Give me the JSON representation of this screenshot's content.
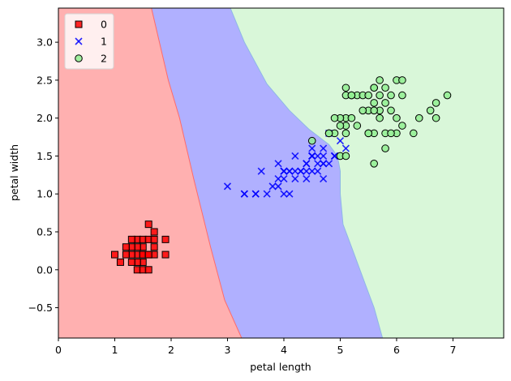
{
  "chart_data": {
    "type": "scatter",
    "title": "",
    "xlabel": "petal length",
    "ylabel": "petal width",
    "xlim": [
      0,
      7.9
    ],
    "ylim": [
      -0.9,
      3.45
    ],
    "x_ticks": [
      0,
      1,
      2,
      3,
      4,
      5,
      6,
      7
    ],
    "y_ticks": [
      -0.5,
      0.0,
      0.5,
      1.0,
      1.5,
      2.0,
      2.5,
      3.0
    ],
    "x_tick_labels": [
      "0",
      "1",
      "2",
      "3",
      "4",
      "5",
      "6",
      "7"
    ],
    "y_tick_labels": [
      "−0.5",
      "0.0",
      "0.5",
      "1.0",
      "1.5",
      "2.0",
      "2.5",
      "3.0"
    ],
    "grid": false,
    "legend_position": "top-left",
    "regions": [
      {
        "class": "0",
        "color": "#ffb0b0",
        "boundary_color": "#ff6b6b"
      },
      {
        "class": "1",
        "color": "#b0b0ff",
        "boundary_color": "#7f7fe0"
      },
      {
        "class": "2",
        "color": "#d9f7d9",
        "boundary_color": "#8fb8e6"
      }
    ],
    "boundaries": {
      "class0_class1": [
        [
          1.65,
          3.45
        ],
        [
          1.95,
          2.5
        ],
        [
          2.15,
          2.0
        ],
        [
          2.4,
          1.2
        ],
        [
          2.7,
          0.3
        ],
        [
          2.95,
          -0.4
        ],
        [
          3.25,
          -0.9
        ]
      ],
      "class1_class2": [
        [
          3.05,
          3.45
        ],
        [
          3.3,
          3.0
        ],
        [
          3.7,
          2.45
        ],
        [
          4.1,
          2.1
        ],
        [
          4.45,
          1.85
        ],
        [
          4.8,
          1.65
        ],
        [
          4.95,
          1.5
        ],
        [
          5.0,
          1.3
        ],
        [
          5.0,
          1.0
        ],
        [
          5.05,
          0.6
        ],
        [
          5.2,
          0.3
        ],
        [
          5.45,
          -0.2
        ],
        [
          5.6,
          -0.5
        ],
        [
          5.75,
          -0.9
        ]
      ]
    },
    "series": [
      {
        "name": "0",
        "marker": "square",
        "color": "#ff0000",
        "edge": "#000000",
        "points": [
          [
            1.4,
            0.2
          ],
          [
            1.3,
            0.2
          ],
          [
            1.5,
            0.2
          ],
          [
            1.4,
            0.4
          ],
          [
            1.5,
            0.1
          ],
          [
            1.5,
            0.2
          ],
          [
            1.6,
            0.2
          ],
          [
            1.4,
            0.1
          ],
          [
            1.1,
            0.1
          ],
          [
            1.2,
            0.2
          ],
          [
            1.3,
            0.4
          ],
          [
            1.7,
            0.3
          ],
          [
            1.5,
            0.3
          ],
          [
            1.7,
            0.2
          ],
          [
            1.5,
            0.4
          ],
          [
            1.0,
            0.2
          ],
          [
            1.7,
            0.5
          ],
          [
            1.9,
            0.2
          ],
          [
            1.6,
            0.4
          ],
          [
            1.4,
            0.3
          ],
          [
            1.6,
            0.6
          ],
          [
            1.9,
            0.4
          ],
          [
            1.3,
            0.3
          ],
          [
            1.6,
            0.2
          ],
          [
            1.3,
            0.1
          ],
          [
            1.4,
            0.0
          ],
          [
            1.2,
            0.3
          ],
          [
            1.5,
            0.0
          ],
          [
            1.7,
            0.4
          ],
          [
            1.6,
            0.0
          ]
        ]
      },
      {
        "name": "1",
        "marker": "x",
        "color": "#0000ff",
        "points": [
          [
            4.7,
            1.4
          ],
          [
            4.5,
            1.5
          ],
          [
            4.9,
            1.5
          ],
          [
            4.0,
            1.3
          ],
          [
            4.6,
            1.5
          ],
          [
            4.5,
            1.3
          ],
          [
            4.7,
            1.6
          ],
          [
            3.3,
            1.0
          ],
          [
            4.6,
            1.3
          ],
          [
            3.9,
            1.4
          ],
          [
            3.5,
            1.0
          ],
          [
            4.2,
            1.5
          ],
          [
            4.0,
            1.0
          ],
          [
            4.7,
            1.4
          ],
          [
            3.6,
            1.3
          ],
          [
            4.4,
            1.4
          ],
          [
            4.5,
            1.5
          ],
          [
            4.1,
            1.0
          ],
          [
            4.5,
            1.5
          ],
          [
            3.9,
            1.1
          ],
          [
            4.8,
            1.8
          ],
          [
            4.0,
            1.3
          ],
          [
            4.9,
            1.5
          ],
          [
            4.7,
            1.2
          ],
          [
            4.3,
            1.3
          ],
          [
            4.4,
            1.4
          ],
          [
            4.8,
            1.4
          ],
          [
            5.0,
            1.7
          ],
          [
            4.5,
            1.5
          ],
          [
            3.5,
            1.0
          ],
          [
            3.8,
            1.1
          ],
          [
            3.7,
            1.0
          ],
          [
            3.9,
            1.2
          ],
          [
            5.1,
            1.6
          ],
          [
            4.5,
            1.5
          ],
          [
            4.5,
            1.6
          ],
          [
            4.7,
            1.5
          ],
          [
            4.4,
            1.3
          ],
          [
            4.1,
            1.3
          ],
          [
            4.0,
            1.3
          ],
          [
            4.4,
            1.2
          ],
          [
            4.6,
            1.4
          ],
          [
            4.0,
            1.2
          ],
          [
            3.0,
            1.1
          ],
          [
            4.2,
            1.3
          ],
          [
            4.2,
            1.2
          ],
          [
            4.3,
            1.3
          ],
          [
            4.1,
            1.3
          ],
          [
            4.9,
            1.5
          ],
          [
            3.3,
            1.0
          ]
        ]
      },
      {
        "name": "2",
        "marker": "circle",
        "color": "#90ee90",
        "edge": "#000000",
        "points": [
          [
            6.0,
            2.5
          ],
          [
            5.1,
            1.9
          ],
          [
            5.9,
            2.1
          ],
          [
            5.6,
            1.8
          ],
          [
            5.8,
            2.2
          ],
          [
            6.6,
            2.1
          ],
          [
            4.5,
            1.7
          ],
          [
            6.3,
            1.8
          ],
          [
            5.8,
            1.8
          ],
          [
            6.1,
            2.5
          ],
          [
            5.1,
            2.0
          ],
          [
            5.3,
            1.9
          ],
          [
            5.5,
            2.1
          ],
          [
            5.0,
            2.0
          ],
          [
            5.1,
            2.4
          ],
          [
            5.3,
            2.3
          ],
          [
            5.5,
            1.8
          ],
          [
            6.7,
            2.2
          ],
          [
            6.9,
            2.3
          ],
          [
            5.0,
            1.5
          ],
          [
            5.7,
            2.3
          ],
          [
            4.9,
            2.0
          ],
          [
            6.7,
            2.0
          ],
          [
            4.9,
            1.8
          ],
          [
            5.7,
            2.1
          ],
          [
            6.0,
            1.8
          ],
          [
            4.8,
            1.8
          ],
          [
            5.6,
            2.1
          ],
          [
            5.8,
            1.6
          ],
          [
            6.1,
            1.9
          ],
          [
            6.4,
            2.0
          ],
          [
            5.6,
            2.2
          ],
          [
            5.1,
            1.5
          ],
          [
            5.6,
            1.4
          ],
          [
            6.1,
            2.3
          ],
          [
            5.6,
            2.4
          ],
          [
            5.5,
            1.8
          ],
          [
            5.4,
            2.1
          ],
          [
            5.6,
            2.4
          ],
          [
            5.1,
            2.3
          ],
          [
            5.9,
            2.3
          ],
          [
            5.7,
            2.5
          ],
          [
            5.2,
            2.3
          ],
          [
            5.0,
            1.9
          ],
          [
            5.2,
            2.0
          ],
          [
            5.4,
            2.3
          ],
          [
            5.1,
            1.8
          ],
          [
            5.9,
            1.8
          ],
          [
            5.7,
            2.0
          ],
          [
            6.0,
            2.0
          ],
          [
            5.5,
            2.3
          ],
          [
            5.8,
            2.4
          ],
          [
            4.8,
            1.8
          ],
          [
            5.2,
            2.3
          ]
        ]
      }
    ]
  }
}
